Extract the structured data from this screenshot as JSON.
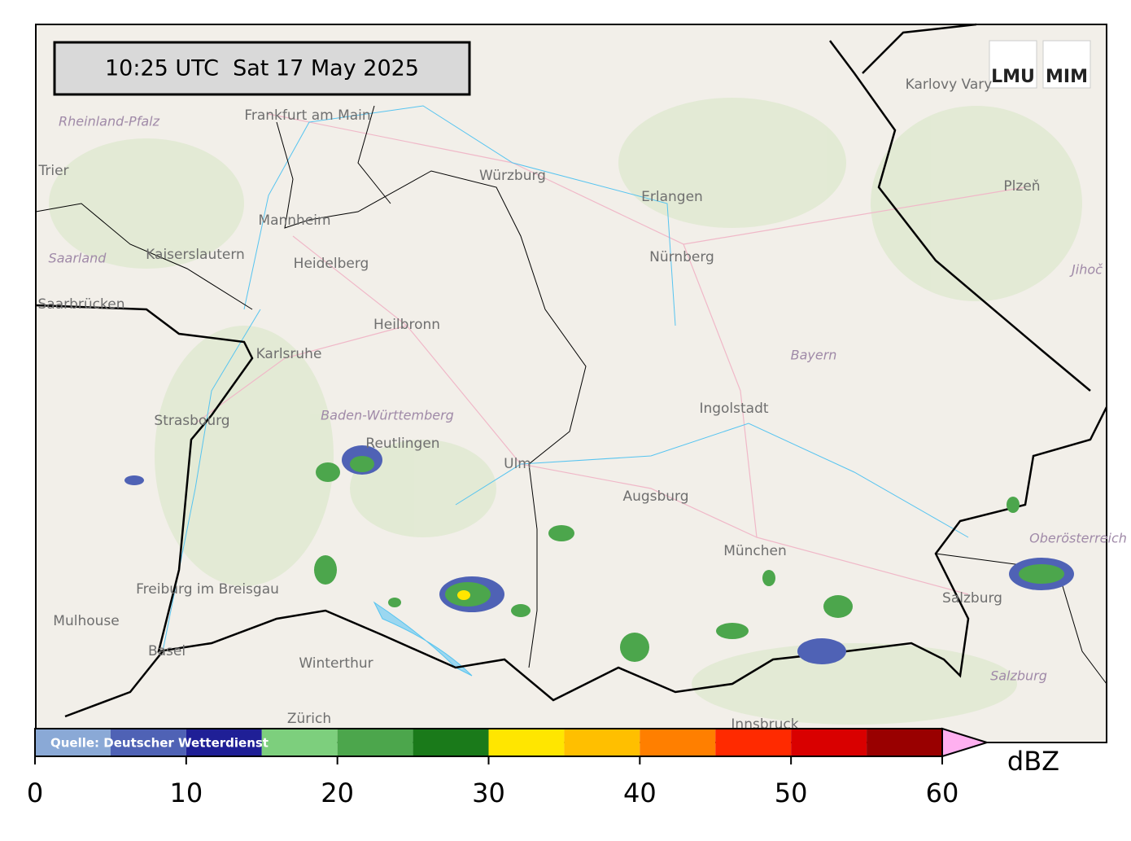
{
  "header": {
    "timestamp": "10:25 UTC  Sat 17 May 2025",
    "logo_left": "LMU",
    "logo_right": "MIM"
  },
  "source": "Quelle: Deutscher Wetterdienst",
  "map_labels": [
    "Frankfurt am Main",
    "Würzburg",
    "Erlangen",
    "Nürnberg",
    "Mannheim",
    "Kaiserslautern",
    "Heidelberg",
    "Heilbronn",
    "Karlsruhe",
    "Strasbourg",
    "Baden-Württemberg",
    "Reutlingen",
    "Ulm",
    "Augsburg",
    "Ingolstadt",
    "Bayern",
    "München",
    "Freiburg im Breisgau",
    "Mulhouse",
    "Basel",
    "Winterthur",
    "Zürich",
    "Salzburg",
    "Salzburg",
    "Oberösterreich",
    "Plzeň",
    "Karlovy Vary",
    "Trier",
    "Saarland",
    "Saarbrücken",
    "Rheinland-Pfalz",
    "Jihoč",
    "Innsbruck"
  ],
  "colorbar": {
    "unit": "dBZ",
    "bounds": [
      0,
      5,
      10,
      15,
      20,
      25,
      30,
      35,
      40,
      45,
      50,
      55,
      60
    ],
    "colors": [
      "#8aa9d6",
      "#4f62b5",
      "#1f1f96",
      "#7dcf7d",
      "#4ca64c",
      "#1a7a1a",
      "#ffe600",
      "#ffbf00",
      "#ff7f00",
      "#ff2a00",
      "#d90000",
      "#990000"
    ],
    "extend_color": "#ffb0f0",
    "ticks": [
      0,
      10,
      20,
      30,
      40,
      50,
      60
    ]
  }
}
